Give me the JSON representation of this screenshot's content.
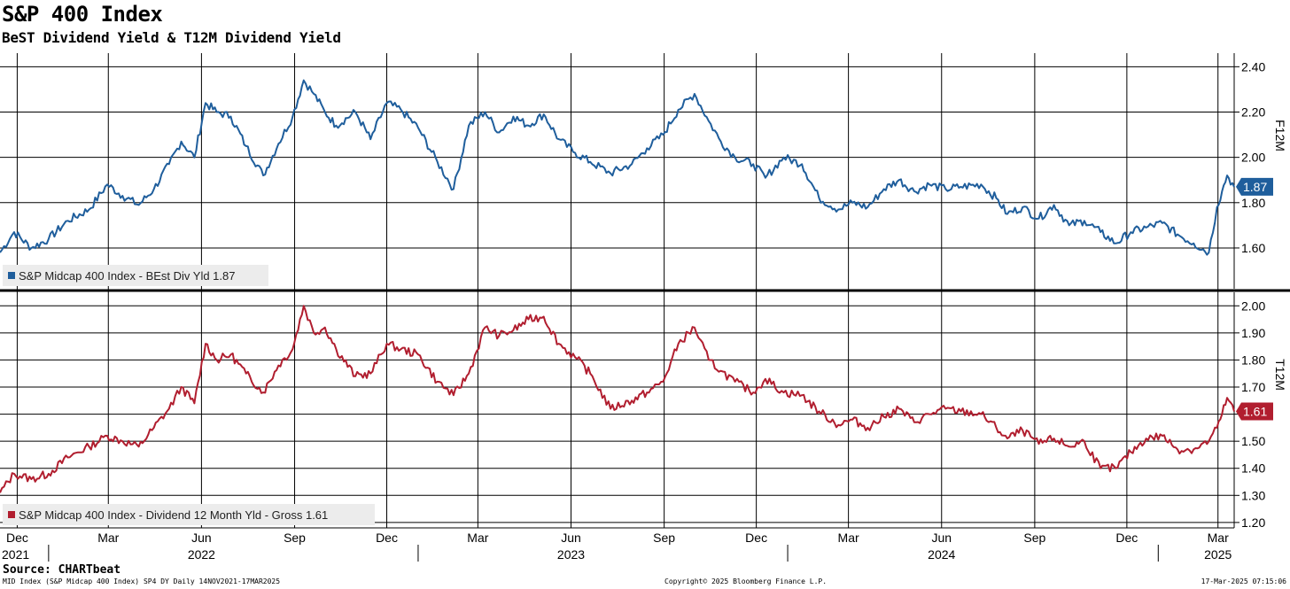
{
  "header": {
    "title": "S&P 400 Index",
    "subtitle": "BeST Dividend Yield & T12M Dividend Yield"
  },
  "footer": {
    "source": "Source: CHARTbeat",
    "left": "MID Index (S&P Midcap 400 Index) SP4 DY  Daily 14NOV2021-17MAR2025",
    "center": "Copyright© 2025 Bloomberg Finance L.P.",
    "right": "17-Mar-2025 07:15:06"
  },
  "colors": {
    "top_series": "#1f5e9c",
    "bottom_series": "#b11e2f",
    "grid": "#000000"
  },
  "chart_data": [
    {
      "type": "line",
      "panel": "top",
      "axis_title": "F12M",
      "ylim": [
        1.42,
        2.46
      ],
      "yticks": [
        1.6,
        1.8,
        2.0,
        2.2,
        2.4
      ],
      "ytick_labels": [
        "1.60",
        "1.80",
        "2.00",
        "2.20",
        "2.40"
      ],
      "grid": true,
      "legend": "bottom-left",
      "series": [
        {
          "name": "S&P Midcap 400 Index - BEst Div Yld 1.87",
          "last_value_label": "1.87",
          "x": [
            "2021-11-14",
            "2021-11-28",
            "2021-12-15",
            "2022-01-01",
            "2022-01-20",
            "2022-02-10",
            "2022-02-28",
            "2022-03-15",
            "2022-03-31",
            "2022-04-15",
            "2022-04-30",
            "2022-05-12",
            "2022-05-25",
            "2022-06-05",
            "2022-06-16",
            "2022-06-30",
            "2022-07-15",
            "2022-08-01",
            "2022-08-16",
            "2022-08-30",
            "2022-09-10",
            "2022-09-20",
            "2022-10-01",
            "2022-10-12",
            "2022-10-31",
            "2022-11-15",
            "2022-12-01",
            "2022-12-15",
            "2023-01-01",
            "2023-01-20",
            "2023-02-05",
            "2023-02-20",
            "2023-03-08",
            "2023-03-22",
            "2023-04-05",
            "2023-04-20",
            "2023-05-05",
            "2023-05-20",
            "2023-06-05",
            "2023-06-20",
            "2023-07-10",
            "2023-07-31",
            "2023-08-15",
            "2023-08-31",
            "2023-09-15",
            "2023-10-01",
            "2023-10-15",
            "2023-10-27",
            "2023-11-10",
            "2023-11-28",
            "2023-12-10",
            "2023-12-28",
            "2024-01-15",
            "2024-02-01",
            "2024-02-20",
            "2024-03-05",
            "2024-03-20",
            "2024-04-05",
            "2024-04-20",
            "2024-05-05",
            "2024-05-20",
            "2024-06-05",
            "2024-06-20",
            "2024-07-10",
            "2024-07-25",
            "2024-08-05",
            "2024-08-20",
            "2024-09-05",
            "2024-09-20",
            "2024-10-05",
            "2024-10-20",
            "2024-11-05",
            "2024-11-20",
            "2024-12-05",
            "2024-12-20",
            "2025-01-05",
            "2025-01-20",
            "2025-02-05",
            "2025-02-20",
            "2025-02-28",
            "2025-03-05",
            "2025-03-10",
            "2025-03-17"
          ],
          "values": [
            1.58,
            1.67,
            1.6,
            1.64,
            1.72,
            1.77,
            1.88,
            1.83,
            1.79,
            1.86,
            1.97,
            2.07,
            2.0,
            2.24,
            2.2,
            2.18,
            2.05,
            1.92,
            2.06,
            2.18,
            2.34,
            2.28,
            2.2,
            2.14,
            2.2,
            2.08,
            2.24,
            2.21,
            2.13,
            1.98,
            1.86,
            2.14,
            2.2,
            2.11,
            2.18,
            2.14,
            2.19,
            2.08,
            2.02,
            1.98,
            1.93,
            1.97,
            2.04,
            2.1,
            2.21,
            2.28,
            2.16,
            2.07,
            2.0,
            1.97,
            1.91,
            2.0,
            1.97,
            1.82,
            1.77,
            1.8,
            1.78,
            1.86,
            1.9,
            1.85,
            1.88,
            1.86,
            1.87,
            1.88,
            1.82,
            1.75,
            1.78,
            1.73,
            1.79,
            1.7,
            1.72,
            1.67,
            1.62,
            1.67,
            1.69,
            1.71,
            1.66,
            1.62,
            1.58,
            1.78,
            1.85,
            1.92,
            1.87
          ]
        }
      ]
    },
    {
      "type": "line",
      "panel": "bottom",
      "axis_title": "T12M",
      "ylim": [
        1.18,
        2.05
      ],
      "yticks": [
        1.2,
        1.3,
        1.4,
        1.5,
        1.6,
        1.7,
        1.8,
        1.9,
        2.0
      ],
      "ytick_labels": [
        "1.20",
        "1.30",
        "1.40",
        "1.50",
        "1.60",
        "1.70",
        "1.80",
        "1.90",
        "2.00"
      ],
      "grid": true,
      "legend": "bottom-left",
      "series": [
        {
          "name": "S&P Midcap 400 Index - Dividend 12 Month Yld - Gross 1.61",
          "last_value_label": "1.61",
          "x": [
            "2021-11-14",
            "2021-11-28",
            "2021-12-15",
            "2022-01-01",
            "2022-01-20",
            "2022-02-10",
            "2022-02-28",
            "2022-03-15",
            "2022-03-31",
            "2022-04-15",
            "2022-04-30",
            "2022-05-12",
            "2022-05-25",
            "2022-06-05",
            "2022-06-16",
            "2022-06-30",
            "2022-07-15",
            "2022-08-01",
            "2022-08-16",
            "2022-08-30",
            "2022-09-10",
            "2022-09-20",
            "2022-10-01",
            "2022-10-12",
            "2022-10-31",
            "2022-11-15",
            "2022-12-01",
            "2022-12-15",
            "2023-01-01",
            "2023-01-20",
            "2023-02-05",
            "2023-02-20",
            "2023-03-08",
            "2023-03-22",
            "2023-04-05",
            "2023-04-20",
            "2023-05-05",
            "2023-05-20",
            "2023-06-05",
            "2023-06-20",
            "2023-07-10",
            "2023-07-31",
            "2023-08-15",
            "2023-08-31",
            "2023-09-15",
            "2023-10-01",
            "2023-10-15",
            "2023-10-27",
            "2023-11-10",
            "2023-11-28",
            "2023-12-10",
            "2023-12-28",
            "2024-01-15",
            "2024-02-01",
            "2024-02-20",
            "2024-03-05",
            "2024-03-20",
            "2024-04-05",
            "2024-04-20",
            "2024-05-05",
            "2024-05-20",
            "2024-06-05",
            "2024-06-20",
            "2024-07-10",
            "2024-07-25",
            "2024-08-05",
            "2024-08-20",
            "2024-09-05",
            "2024-09-20",
            "2024-10-05",
            "2024-10-20",
            "2024-11-05",
            "2024-11-20",
            "2024-12-05",
            "2024-12-20",
            "2025-01-05",
            "2025-01-20",
            "2025-02-05",
            "2025-02-20",
            "2025-02-28",
            "2025-03-05",
            "2025-03-10",
            "2025-03-17"
          ],
          "values": [
            1.31,
            1.38,
            1.36,
            1.38,
            1.44,
            1.48,
            1.52,
            1.5,
            1.48,
            1.55,
            1.62,
            1.7,
            1.64,
            1.86,
            1.8,
            1.82,
            1.75,
            1.68,
            1.78,
            1.84,
            2.0,
            1.9,
            1.92,
            1.84,
            1.74,
            1.75,
            1.86,
            1.84,
            1.82,
            1.72,
            1.67,
            1.75,
            1.92,
            1.89,
            1.91,
            1.95,
            1.96,
            1.86,
            1.81,
            1.75,
            1.62,
            1.65,
            1.68,
            1.72,
            1.86,
            1.92,
            1.8,
            1.76,
            1.72,
            1.68,
            1.73,
            1.68,
            1.67,
            1.61,
            1.56,
            1.58,
            1.55,
            1.59,
            1.62,
            1.57,
            1.6,
            1.62,
            1.61,
            1.6,
            1.55,
            1.51,
            1.54,
            1.49,
            1.51,
            1.48,
            1.5,
            1.4,
            1.4,
            1.46,
            1.51,
            1.52,
            1.47,
            1.47,
            1.5,
            1.55,
            1.6,
            1.66,
            1.61
          ]
        }
      ]
    }
  ],
  "x_axis": {
    "start": "2021-11-14",
    "end": "2025-03-17",
    "month_ticks": [
      {
        "date": "2021-12-01",
        "label": "Dec"
      },
      {
        "date": "2022-03-01",
        "label": "Mar"
      },
      {
        "date": "2022-06-01",
        "label": "Jun"
      },
      {
        "date": "2022-09-01",
        "label": "Sep"
      },
      {
        "date": "2022-12-01",
        "label": "Dec"
      },
      {
        "date": "2023-03-01",
        "label": "Mar"
      },
      {
        "date": "2023-06-01",
        "label": "Jun"
      },
      {
        "date": "2023-09-01",
        "label": "Sep"
      },
      {
        "date": "2023-12-01",
        "label": "Dec"
      },
      {
        "date": "2024-03-01",
        "label": "Mar"
      },
      {
        "date": "2024-06-01",
        "label": "Jun"
      },
      {
        "date": "2024-09-01",
        "label": "Sep"
      },
      {
        "date": "2024-12-01",
        "label": "Dec"
      },
      {
        "date": "2025-03-01",
        "label": "Mar"
      }
    ],
    "year_labels": [
      {
        "date": "2021-11-14",
        "label": "2021"
      },
      {
        "date": "2022-06-01",
        "label": "2022"
      },
      {
        "date": "2023-06-01",
        "label": "2023"
      },
      {
        "date": "2024-06-01",
        "label": "2024"
      },
      {
        "date": "2025-03-01",
        "label": "2025"
      }
    ],
    "year_dividers": [
      "2022-01-01",
      "2023-01-01",
      "2024-01-01",
      "2025-01-01"
    ]
  }
}
